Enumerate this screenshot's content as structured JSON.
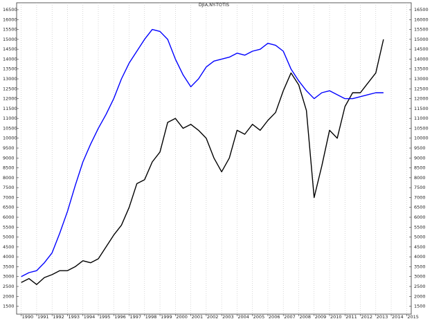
{
  "chart_data": {
    "type": "line",
    "title": "DJIA,NY-TOTIS",
    "x": [
      1990,
      1990.5,
      1991,
      1991.5,
      1992,
      1992.5,
      1993,
      1993.5,
      1994,
      1994.5,
      1995,
      1995.5,
      1996,
      1996.5,
      1997,
      1997.5,
      1998,
      1998.5,
      1999,
      1999.5,
      2000,
      2000.5,
      2001,
      2001.5,
      2002,
      2002.5,
      2003,
      2003.5,
      2004,
      2004.5,
      2005,
      2005.5,
      2006,
      2006.5,
      2007,
      2007.5,
      2008,
      2008.5,
      2009,
      2009.5,
      2010,
      2010.5,
      2011,
      2011.5,
      2012,
      2012.5,
      2013,
      2013.5
    ],
    "series": [
      {
        "color": "#000000",
        "values": [
          2700,
          2900,
          2600,
          2950,
          3100,
          3300,
          3300,
          3500,
          3800,
          3700,
          3900,
          4500,
          5100,
          5600,
          6500,
          7700,
          7900,
          8800,
          9300,
          10800,
          11000,
          10500,
          10700,
          10400,
          10000,
          9000,
          8300,
          9000,
          10400,
          10200,
          10700,
          10400,
          10900,
          11300,
          12400,
          13300,
          12700,
          11400,
          7000,
          8600,
          10400,
          10000,
          11600,
          12300,
          12300,
          12800,
          13300,
          15000
        ]
      },
      {
        "color": "#0000ff",
        "values": [
          3000,
          3200,
          3300,
          3700,
          4200,
          5200,
          6300,
          7600,
          8800,
          9700,
          10500,
          11200,
          12000,
          13000,
          13800,
          14400,
          15000,
          15500,
          15400,
          15000,
          14000,
          13200,
          12600,
          13000,
          13600,
          13900,
          14000,
          14100,
          14300,
          14200,
          14400,
          14500,
          14800,
          14700,
          14400,
          13500,
          12900,
          12400,
          12000,
          12300,
          12400,
          12200,
          12000,
          12000,
          12100,
          12200,
          12300,
          12300
        ]
      }
    ],
    "xlim": [
      1989.7,
      2015.3
    ],
    "xticks": [
      1990,
      1991,
      1992,
      1993,
      1994,
      1995,
      1996,
      1997,
      1998,
      1999,
      2000,
      2001,
      2002,
      2003,
      2004,
      2005,
      2006,
      2007,
      2008,
      2009,
      2010,
      2011,
      2012,
      2013,
      2014,
      2015
    ],
    "ylim": [
      1100,
      16850
    ],
    "yticks": [
      1500,
      2000,
      2500,
      3000,
      3500,
      4000,
      4500,
      5000,
      5500,
      6000,
      6500,
      7000,
      7500,
      8000,
      8500,
      9000,
      9500,
      10000,
      10500,
      11000,
      11500,
      12000,
      12500,
      13000,
      13500,
      14000,
      14500,
      15000,
      15500,
      16000,
      16500
    ],
    "grid": true
  }
}
